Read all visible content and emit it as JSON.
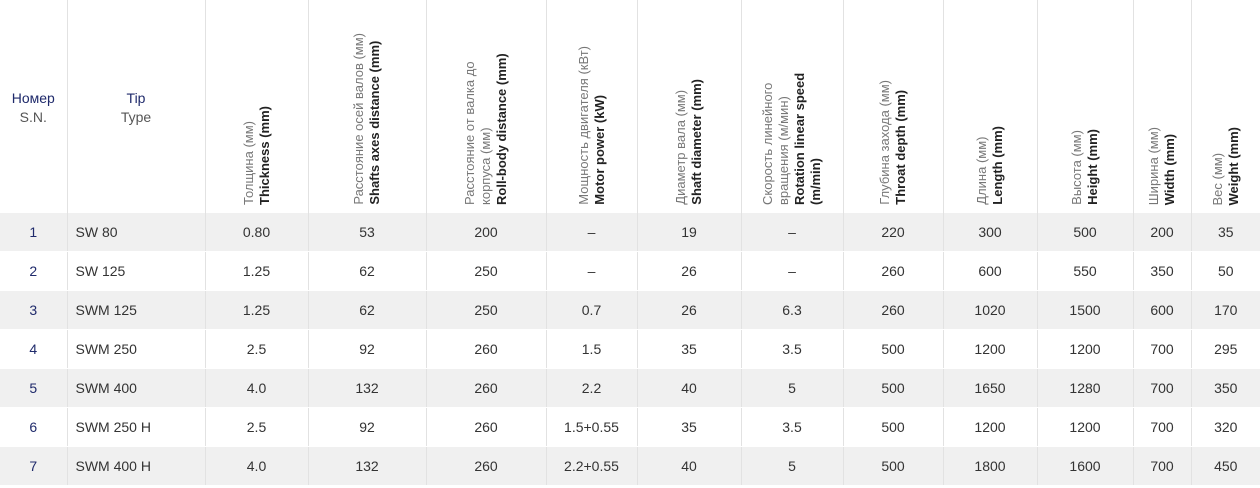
{
  "table": {
    "headers": [
      {
        "ru": "Номер",
        "en": "S.N."
      },
      {
        "ru": "Tip",
        "en": "Type"
      },
      {
        "ru": "Толщина (мм)",
        "en": "Thickness (mm)"
      },
      {
        "ru": "Расстояние осей валов (мм)",
        "en": "Shafts axes distance (mm)"
      },
      {
        "ru": "Расстояние от валка до корпуса (мм)",
        "en": "Roll-body distance (mm)"
      },
      {
        "ru": "Мощность двигателя (кВт)",
        "en": "Motor power (kW)"
      },
      {
        "ru": "Диаметр вала (мм)",
        "en": "Shaft diameter (mm)"
      },
      {
        "ru": "Скорость линейного вращения (м/мин)",
        "en": "Rotation linear speed (m/min)"
      },
      {
        "ru": "Глубина захода (мм)",
        "en": "Throat depth (mm)"
      },
      {
        "ru": "Длина (мм)",
        "en": "Length (mm)"
      },
      {
        "ru": "Высота (мм)",
        "en": "Height (mm)"
      },
      {
        "ru": "Ширина (мм)",
        "en": "Width (mm)"
      },
      {
        "ru": "Вес (мм)",
        "en": "Weight (mm)"
      }
    ],
    "rows": [
      [
        "1",
        "SW 80",
        "0.80",
        "53",
        "200",
        "–",
        "19",
        "–",
        "220",
        "300",
        "500",
        "200",
        "35"
      ],
      [
        "2",
        "SW 125",
        "1.25",
        "62",
        "250",
        "–",
        "26",
        "–",
        "260",
        "600",
        "550",
        "350",
        "50"
      ],
      [
        "3",
        "SWM 125",
        "1.25",
        "62",
        "250",
        "0.7",
        "26",
        "6.3",
        "260",
        "1020",
        "1500",
        "600",
        "170"
      ],
      [
        "4",
        "SWM 250",
        "2.5",
        "92",
        "260",
        "1.5",
        "35",
        "3.5",
        "500",
        "1200",
        "1200",
        "700",
        "295"
      ],
      [
        "5",
        "SWM 400",
        "4.0",
        "132",
        "260",
        "2.2",
        "40",
        "5",
        "500",
        "1650",
        "1280",
        "700",
        "350"
      ],
      [
        "6",
        "SWM 250 H",
        "2.5",
        "92",
        "260",
        "1.5+0.55",
        "35",
        "3.5",
        "500",
        "1200",
        "1200",
        "700",
        "320"
      ],
      [
        "7",
        "SWM 400 H",
        "4.0",
        "132",
        "260",
        "2.2+0.55",
        "40",
        "5",
        "500",
        "1800",
        "1600",
        "700",
        "450"
      ]
    ]
  }
}
